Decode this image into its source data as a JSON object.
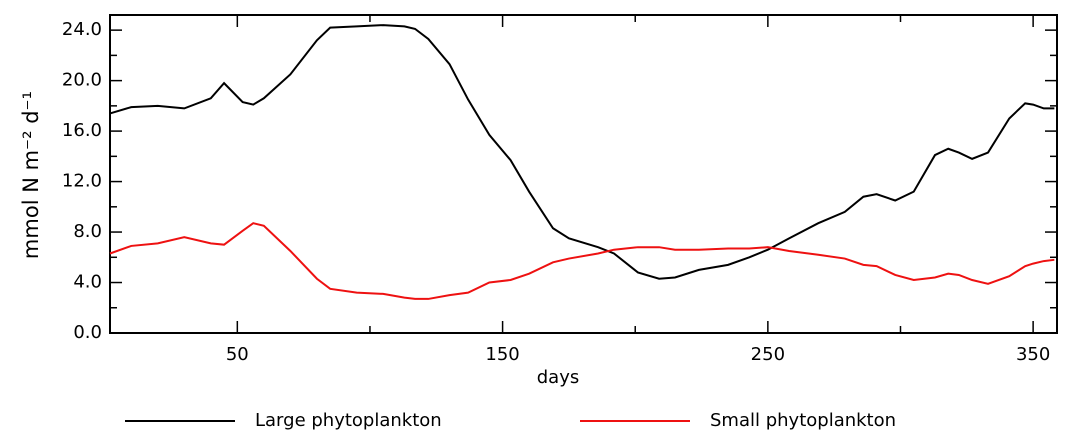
{
  "chart_data": {
    "type": "line",
    "xlabel": "days",
    "ylabel": "mmol N m⁻² d⁻¹",
    "x": [
      2,
      10,
      20,
      30,
      40,
      45,
      52,
      56,
      60,
      70,
      80,
      85,
      95,
      105,
      113,
      117,
      122,
      130,
      137,
      145,
      153,
      160,
      169,
      175,
      186,
      192,
      201,
      209,
      215,
      224,
      235,
      243,
      250,
      258,
      269,
      279,
      286,
      291,
      298,
      305,
      313,
      318,
      322,
      327,
      333,
      341,
      347,
      350,
      354,
      358
    ],
    "series": [
      {
        "name": "Large phytoplankton",
        "color": "#000000",
        "values": [
          17.4,
          17.9,
          18.0,
          17.8,
          18.6,
          19.8,
          18.3,
          18.1,
          18.6,
          20.5,
          23.2,
          24.2,
          24.3,
          24.4,
          24.3,
          24.1,
          23.3,
          21.3,
          18.5,
          15.7,
          13.7,
          11.2,
          8.3,
          7.5,
          6.8,
          6.3,
          4.8,
          4.3,
          4.4,
          5.0,
          5.4,
          6.0,
          6.6,
          7.5,
          8.7,
          9.6,
          10.8,
          11.0,
          10.5,
          11.2,
          14.1,
          14.6,
          14.3,
          13.8,
          14.3,
          17.0,
          18.2,
          18.1,
          17.8,
          17.8
        ]
      },
      {
        "name": "Small phytoplankton",
        "color": "#ee1111",
        "values": [
          6.3,
          6.9,
          7.1,
          7.6,
          7.1,
          7.0,
          8.1,
          8.7,
          8.5,
          6.5,
          4.3,
          3.5,
          3.2,
          3.1,
          2.8,
          2.7,
          2.7,
          3.0,
          3.2,
          4.0,
          4.2,
          4.7,
          5.6,
          5.9,
          6.3,
          6.6,
          6.8,
          6.8,
          6.6,
          6.6,
          6.7,
          6.7,
          6.8,
          6.5,
          6.2,
          5.9,
          5.4,
          5.3,
          4.6,
          4.2,
          4.4,
          4.7,
          4.6,
          4.2,
          3.9,
          4.5,
          5.3,
          5.5,
          5.7,
          5.8
        ]
      }
    ],
    "xlim": [
      2,
      359
    ],
    "xticks": [
      50,
      150,
      250,
      350
    ],
    "xminorticks": [
      100,
      200,
      300
    ],
    "ylim": [
      0,
      25.2
    ],
    "yticks": [
      {
        "value": 0,
        "label": "0.0"
      },
      {
        "value": 4,
        "label": "4.0"
      },
      {
        "value": 8,
        "label": "8.0"
      },
      {
        "value": 12,
        "label": "12.0"
      },
      {
        "value": 16,
        "label": "16.0"
      },
      {
        "value": 20,
        "label": "20.0"
      },
      {
        "value": 24,
        "label": "24.0"
      }
    ],
    "yminorticks": [
      2,
      6,
      10,
      14,
      18,
      22
    ]
  }
}
